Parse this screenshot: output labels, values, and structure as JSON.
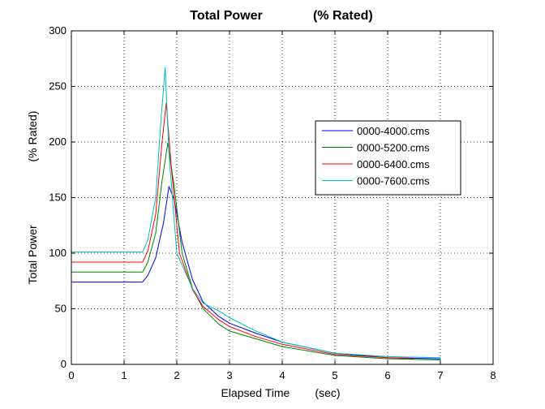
{
  "chart_data": {
    "type": "line",
    "title": "Total Power              (% Rated)",
    "xlabel": "Elapsed Time        (sec)",
    "ylabel": "Total Power                    (% Rated)",
    "xlim": [
      0,
      8
    ],
    "ylim": [
      0,
      300
    ],
    "x_ticks": [
      0,
      1,
      2,
      3,
      4,
      5,
      6,
      7,
      8
    ],
    "y_ticks": [
      0,
      50,
      100,
      150,
      200,
      250,
      300
    ],
    "grid": "dotted",
    "legend_position": "right",
    "series": [
      {
        "name": "0000-4000.cms",
        "color": "#0000ff",
        "x": [
          0,
          1.35,
          1.45,
          1.6,
          1.75,
          1.85,
          1.95,
          2.1,
          2.3,
          2.5,
          2.8,
          3.0,
          3.5,
          4.0,
          5.0,
          6.0,
          7.0
        ],
        "y": [
          74,
          74,
          80,
          96,
          128,
          160,
          148,
          110,
          76,
          56,
          43,
          37,
          28,
          20,
          10,
          6,
          5
        ]
      },
      {
        "name": "0000-5200.cms",
        "color": "#008000",
        "x": [
          0,
          1.35,
          1.45,
          1.6,
          1.72,
          1.83,
          1.95,
          2.1,
          2.3,
          2.5,
          2.8,
          3.0,
          3.5,
          4.0,
          5.0,
          6.0,
          7.0
        ],
        "y": [
          83,
          83,
          92,
          118,
          165,
          199,
          160,
          100,
          68,
          50,
          36,
          30,
          23,
          16,
          8,
          5,
          4
        ]
      },
      {
        "name": "0000-6400.cms",
        "color": "#ff0000",
        "x": [
          0,
          1.35,
          1.45,
          1.6,
          1.72,
          1.8,
          1.9,
          2.05,
          2.3,
          2.5,
          2.8,
          3.0,
          3.5,
          4.0,
          5.0,
          6.0,
          6.5
        ],
        "y": [
          92,
          92,
          102,
          135,
          200,
          235,
          175,
          100,
          67,
          52,
          40,
          34,
          25,
          18,
          9,
          6,
          5
        ]
      },
      {
        "name": "0000-7600.cms",
        "color": "#00bfbf",
        "x": [
          0,
          1.35,
          1.45,
          1.6,
          1.7,
          1.78,
          1.85,
          2.0,
          2.3,
          2.5,
          2.8,
          3.0,
          3.5,
          4.0,
          5.0,
          6.0,
          7.0
        ],
        "y": [
          101,
          101,
          112,
          150,
          220,
          267,
          190,
          100,
          68,
          55,
          48,
          42,
          30,
          20,
          10,
          7,
          6
        ]
      }
    ]
  }
}
